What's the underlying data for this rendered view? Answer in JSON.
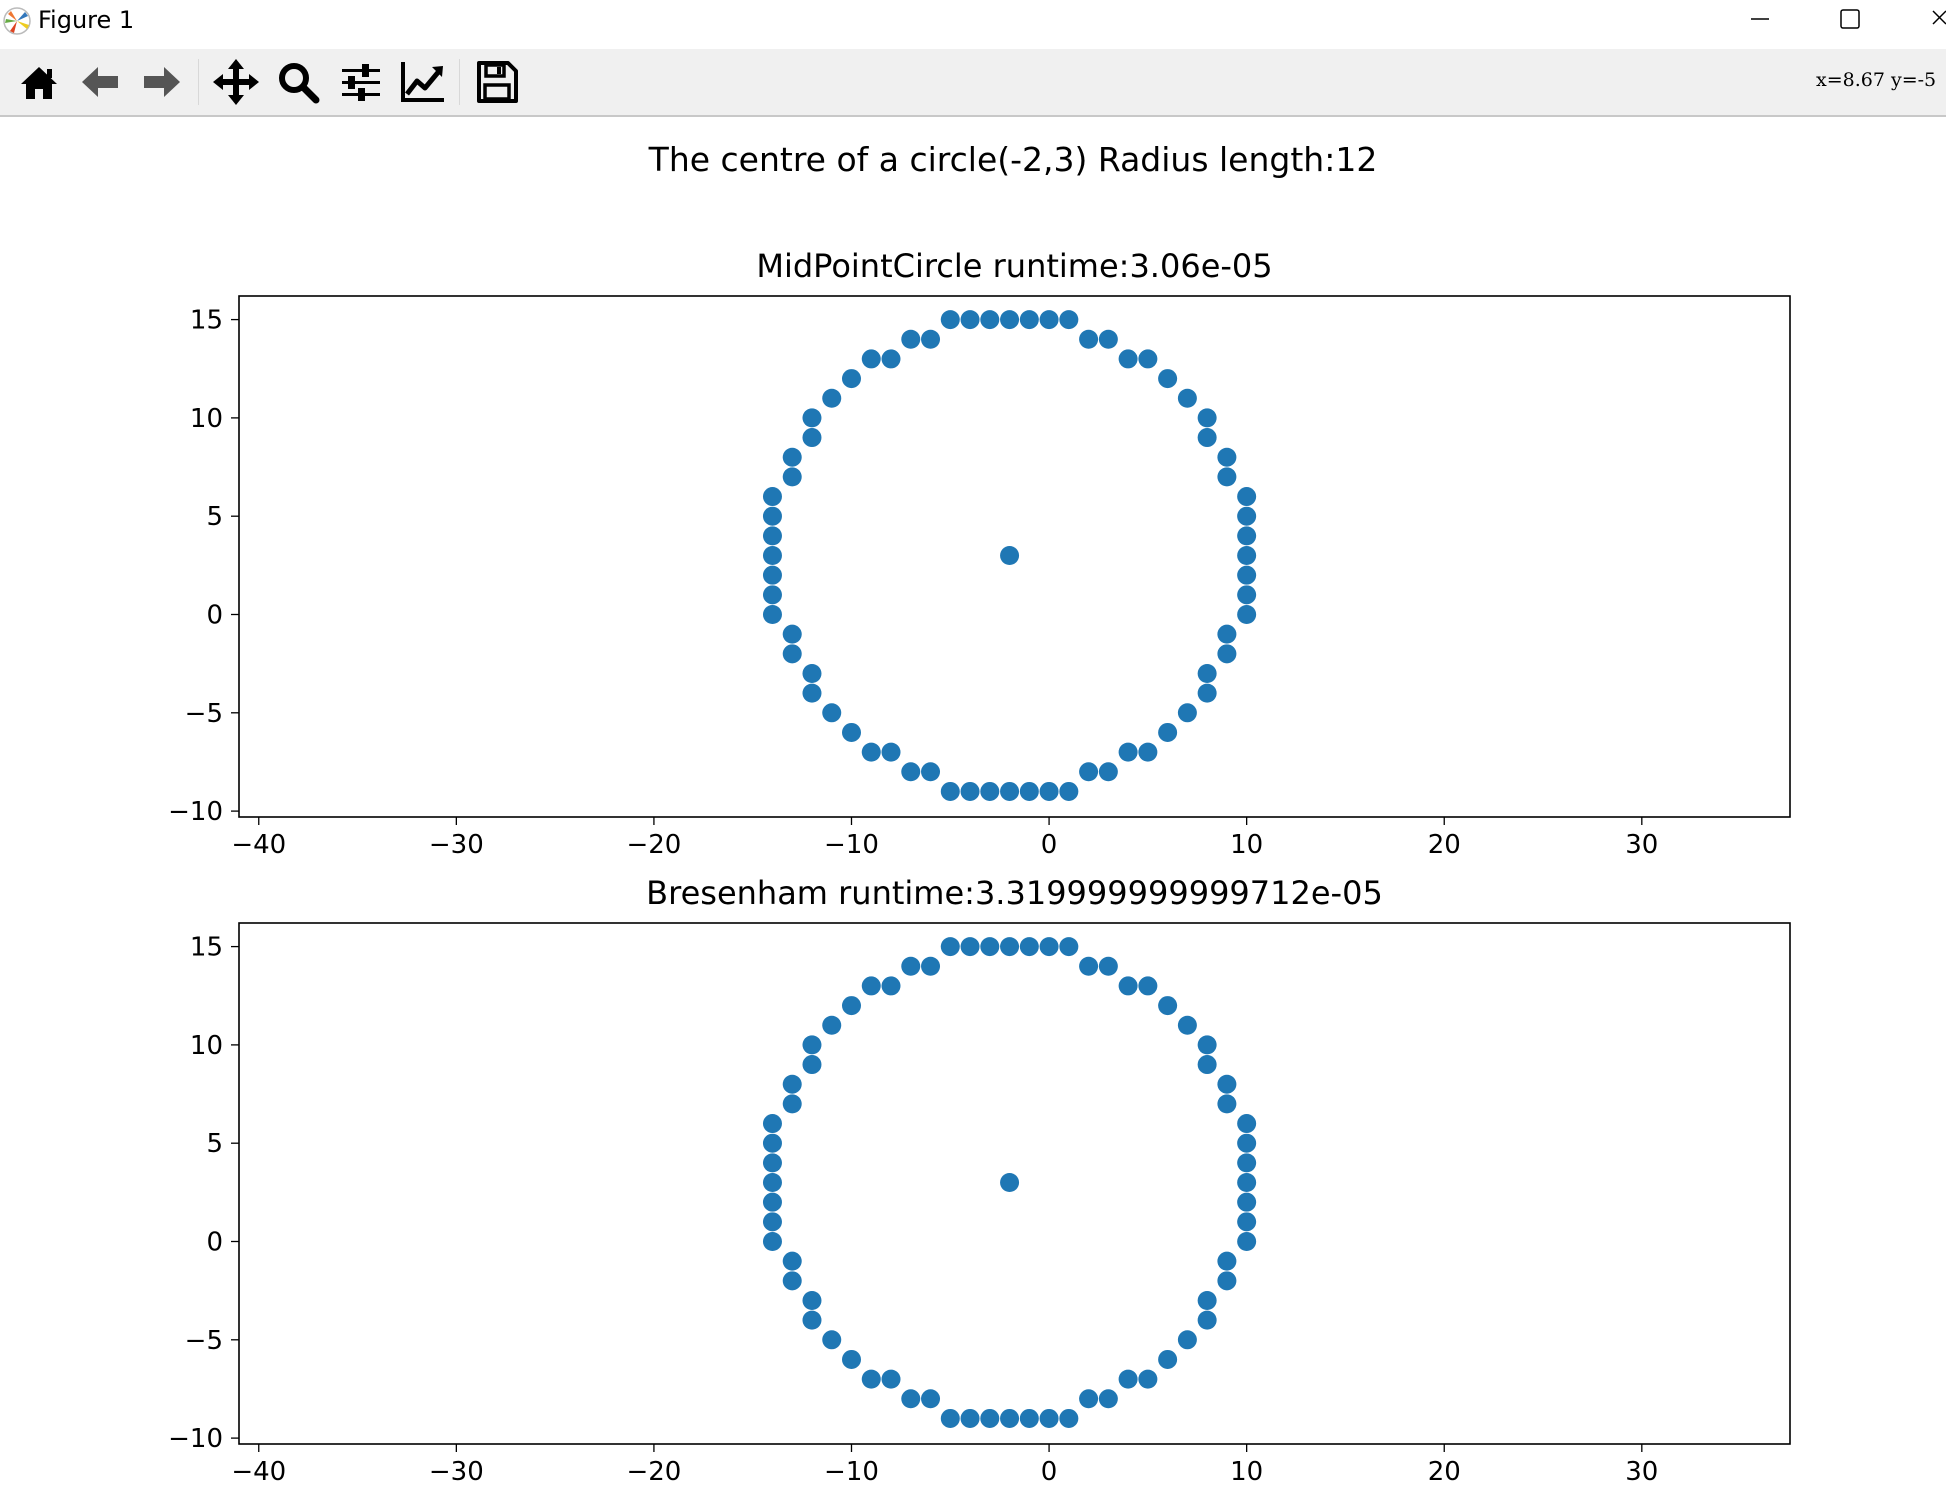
{
  "window": {
    "title": "Figure 1",
    "minimize_icon": "minimize-icon",
    "maximize_icon": "maximize-icon",
    "close_icon": "close-icon"
  },
  "toolbar": {
    "buttons": [
      {
        "name": "home-button",
        "icon": "home-icon"
      },
      {
        "name": "back-button",
        "icon": "arrow-left-icon"
      },
      {
        "name": "forward-button",
        "icon": "arrow-right-icon"
      },
      {
        "name": "pan-button",
        "icon": "move-icon"
      },
      {
        "name": "zoom-button",
        "icon": "zoom-icon"
      },
      {
        "name": "configure-subplots-button",
        "icon": "sliders-icon"
      },
      {
        "name": "edit-axes-button",
        "icon": "line-chart-icon"
      },
      {
        "name": "save-button",
        "icon": "save-icon"
      }
    ],
    "coordinates": "x=8.67  y=-5"
  },
  "figure": {
    "suptitle": "The centre of a circle(-2,3) Radius length:12",
    "marker_color": "#1f77b4"
  },
  "chart_data": [
    {
      "type": "scatter",
      "title": "MidPointCircle  runtime:3.06e-05",
      "xlim": [
        -41,
        37.5
      ],
      "ylim": [
        -10.3,
        16.2
      ],
      "xticks": [
        -40,
        -30,
        -20,
        -10,
        0,
        10,
        20,
        30
      ],
      "xtick_labels": [
        "−40",
        "−30",
        "−20",
        "−10",
        "0",
        "10",
        "20",
        "30"
      ],
      "yticks": [
        -10,
        -5,
        0,
        5,
        10,
        15
      ],
      "ytick_labels": [
        "−10",
        "−5",
        "0",
        "5",
        "10",
        "15"
      ],
      "points": [
        [
          -5,
          15
        ],
        [
          -4,
          15
        ],
        [
          -3,
          15
        ],
        [
          -2,
          15
        ],
        [
          -1,
          15
        ],
        [
          0,
          15
        ],
        [
          1,
          15
        ],
        [
          -7,
          14
        ],
        [
          -6,
          14
        ],
        [
          2,
          14
        ],
        [
          3,
          14
        ],
        [
          -9,
          13
        ],
        [
          -8,
          13
        ],
        [
          4,
          13
        ],
        [
          5,
          13
        ],
        [
          -10,
          12
        ],
        [
          6,
          12
        ],
        [
          -11,
          11
        ],
        [
          7,
          11
        ],
        [
          -12,
          10
        ],
        [
          8,
          10
        ],
        [
          -12,
          9
        ],
        [
          8,
          9
        ],
        [
          -13,
          8
        ],
        [
          9,
          8
        ],
        [
          -13,
          7
        ],
        [
          9,
          7
        ],
        [
          -14,
          6
        ],
        [
          10,
          6
        ],
        [
          -14,
          5
        ],
        [
          10,
          5
        ],
        [
          -14,
          4
        ],
        [
          10,
          4
        ],
        [
          -14,
          3
        ],
        [
          10,
          3
        ],
        [
          -14,
          2
        ],
        [
          10,
          2
        ],
        [
          -14,
          1
        ],
        [
          10,
          1
        ],
        [
          -14,
          0
        ],
        [
          10,
          0
        ],
        [
          -13,
          -1
        ],
        [
          9,
          -1
        ],
        [
          -13,
          -2
        ],
        [
          9,
          -2
        ],
        [
          -12,
          -3
        ],
        [
          8,
          -3
        ],
        [
          -12,
          -4
        ],
        [
          8,
          -4
        ],
        [
          -11,
          -5
        ],
        [
          7,
          -5
        ],
        [
          -10,
          -6
        ],
        [
          6,
          -6
        ],
        [
          -9,
          -7
        ],
        [
          -8,
          -7
        ],
        [
          4,
          -7
        ],
        [
          5,
          -7
        ],
        [
          -7,
          -8
        ],
        [
          -6,
          -8
        ],
        [
          2,
          -8
        ],
        [
          3,
          -8
        ],
        [
          -5,
          -9
        ],
        [
          -4,
          -9
        ],
        [
          -3,
          -9
        ],
        [
          -2,
          -9
        ],
        [
          -1,
          -9
        ],
        [
          0,
          -9
        ],
        [
          1,
          -9
        ],
        [
          -2,
          3
        ]
      ]
    },
    {
      "type": "scatter",
      "title": "Bresenham  runtime:3.319999999999712e-05",
      "xlim": [
        -41,
        37.5
      ],
      "ylim": [
        -10.3,
        16.2
      ],
      "xticks": [
        -40,
        -30,
        -20,
        -10,
        0,
        10,
        20,
        30
      ],
      "xtick_labels": [
        "−40",
        "−30",
        "−20",
        "−10",
        "0",
        "10",
        "20",
        "30"
      ],
      "yticks": [
        -10,
        -5,
        0,
        5,
        10,
        15
      ],
      "ytick_labels": [
        "−10",
        "−5",
        "0",
        "5",
        "10",
        "15"
      ],
      "points": [
        [
          -5,
          15
        ],
        [
          -4,
          15
        ],
        [
          -3,
          15
        ],
        [
          -2,
          15
        ],
        [
          -1,
          15
        ],
        [
          0,
          15
        ],
        [
          1,
          15
        ],
        [
          -7,
          14
        ],
        [
          -6,
          14
        ],
        [
          2,
          14
        ],
        [
          3,
          14
        ],
        [
          -9,
          13
        ],
        [
          -8,
          13
        ],
        [
          4,
          13
        ],
        [
          5,
          13
        ],
        [
          -10,
          12
        ],
        [
          6,
          12
        ],
        [
          -11,
          11
        ],
        [
          7,
          11
        ],
        [
          -12,
          10
        ],
        [
          8,
          10
        ],
        [
          -12,
          9
        ],
        [
          8,
          9
        ],
        [
          -13,
          8
        ],
        [
          9,
          8
        ],
        [
          -13,
          7
        ],
        [
          9,
          7
        ],
        [
          -14,
          6
        ],
        [
          10,
          6
        ],
        [
          -14,
          5
        ],
        [
          10,
          5
        ],
        [
          -14,
          4
        ],
        [
          10,
          4
        ],
        [
          -14,
          3
        ],
        [
          10,
          3
        ],
        [
          -14,
          2
        ],
        [
          10,
          2
        ],
        [
          -14,
          1
        ],
        [
          10,
          1
        ],
        [
          -14,
          0
        ],
        [
          10,
          0
        ],
        [
          -13,
          -1
        ],
        [
          9,
          -1
        ],
        [
          -13,
          -2
        ],
        [
          9,
          -2
        ],
        [
          -12,
          -3
        ],
        [
          8,
          -3
        ],
        [
          -12,
          -4
        ],
        [
          8,
          -4
        ],
        [
          -11,
          -5
        ],
        [
          7,
          -5
        ],
        [
          -10,
          -6
        ],
        [
          6,
          -6
        ],
        [
          -9,
          -7
        ],
        [
          -8,
          -7
        ],
        [
          4,
          -7
        ],
        [
          5,
          -7
        ],
        [
          -7,
          -8
        ],
        [
          -6,
          -8
        ],
        [
          2,
          -8
        ],
        [
          3,
          -8
        ],
        [
          -5,
          -9
        ],
        [
          -4,
          -9
        ],
        [
          -3,
          -9
        ],
        [
          -2,
          -9
        ],
        [
          -1,
          -9
        ],
        [
          0,
          -9
        ],
        [
          1,
          -9
        ],
        [
          -2,
          3
        ]
      ]
    }
  ]
}
